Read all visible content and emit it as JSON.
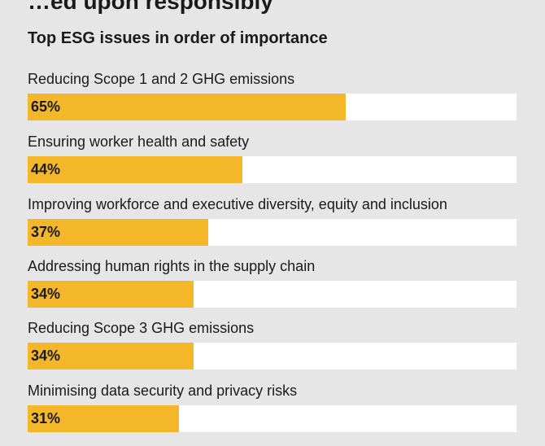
{
  "page": {
    "cut_heading": "…ed upon responsibly"
  },
  "chart_data": {
    "type": "bar",
    "orientation": "horizontal",
    "title": "Top ESG issues in order of importance",
    "categories": [
      "Reducing Scope 1 and 2 GHG emissions",
      "Ensuring worker health and safety",
      "Improving workforce and executive diversity, equity and inclusion",
      "Addressing human rights in the supply chain",
      "Reducing Scope 3 GHG emissions",
      "Minimising data security and privacy risks"
    ],
    "values": [
      65,
      44,
      37,
      34,
      34,
      31
    ],
    "value_labels": [
      "65%",
      "44%",
      "37%",
      "34%",
      "34%",
      "31%"
    ],
    "xlim": [
      0,
      100
    ],
    "unit": "%",
    "grid": false,
    "legend": "none",
    "colors": {
      "bar": "#f4b72a",
      "track": "#ffffff",
      "background": "#e6e6e6",
      "text": "#1a1a1a"
    }
  }
}
